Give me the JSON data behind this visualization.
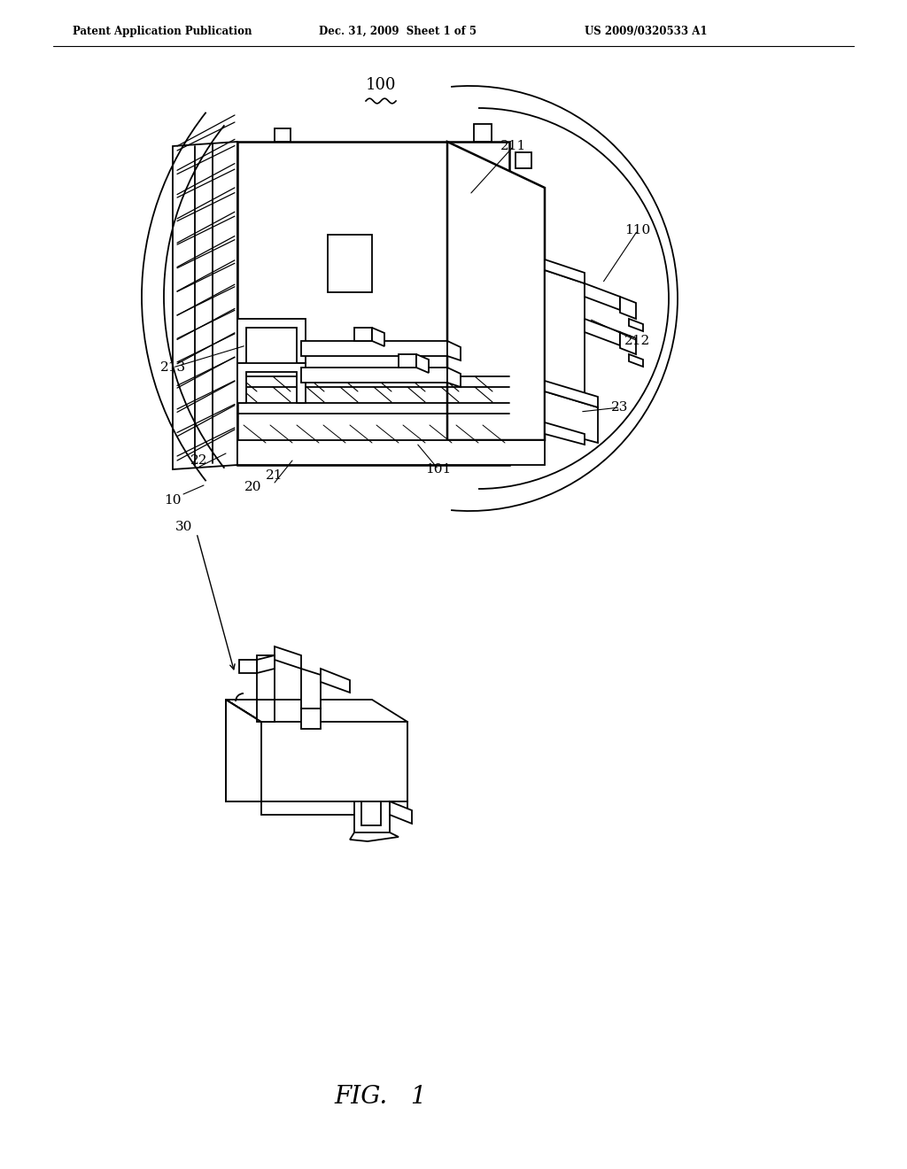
{
  "bg": "#ffffff",
  "lc": "#000000",
  "header_left": "Patent Application Publication",
  "header_mid": "Dec. 31, 2009  Sheet 1 of 5",
  "header_right": "US 2009/0320533 A1",
  "fig_label": "FIG.   1",
  "lw": 1.3,
  "lw_thick": 1.8
}
